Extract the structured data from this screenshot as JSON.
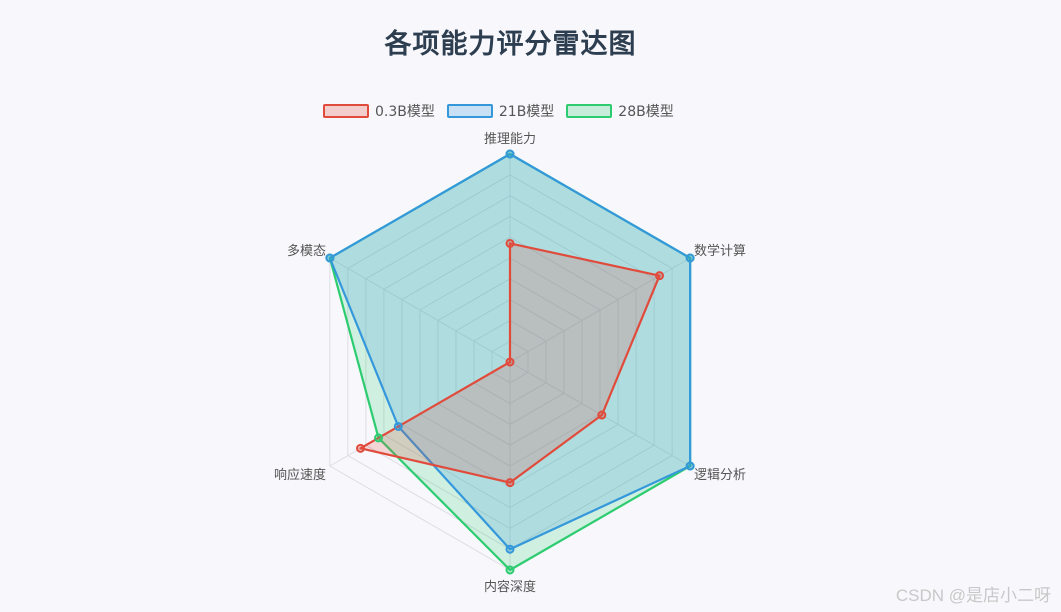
{
  "chart_data": {
    "type": "radar",
    "title": "各项能力评分雷达图",
    "axes": [
      "推理能力",
      "数学计算",
      "逻辑分析",
      "内容深度",
      "响应速度",
      "多模态"
    ],
    "r_range": [
      0,
      100
    ],
    "grid": true,
    "legend_position": "top-center",
    "series": [
      {
        "name": "0.3B模型",
        "color": "#e04b3c",
        "values": [
          57,
          83,
          51,
          58,
          83,
          0
        ]
      },
      {
        "name": "21B模型",
        "color": "#3498db",
        "values": [
          100,
          100,
          100,
          90,
          62,
          100
        ]
      },
      {
        "name": "28B模型",
        "color": "#2ecc71",
        "values": [
          100,
          100,
          100,
          100,
          73,
          100
        ]
      }
    ]
  },
  "watermark": "CSDN @是店小二呀"
}
